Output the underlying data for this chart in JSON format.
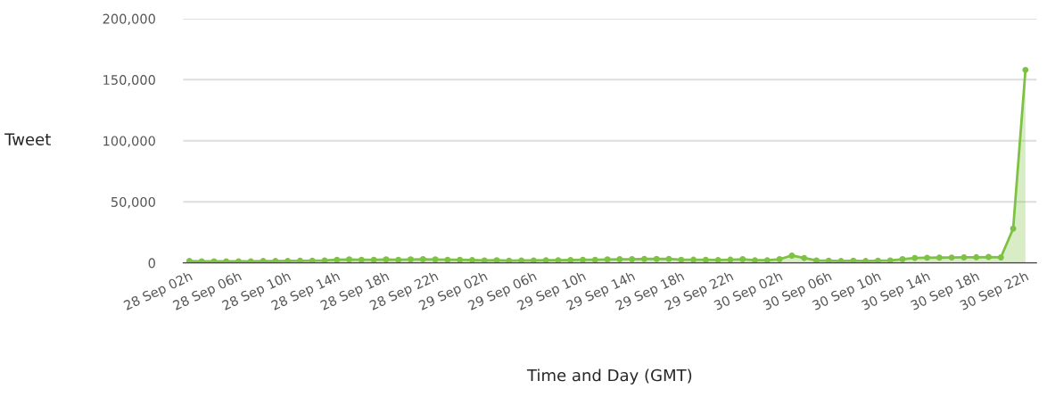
{
  "chart_data": {
    "type": "area",
    "xlabel": "Time and Day (GMT)",
    "ylabel": "Tweet",
    "categories": [
      "28 Sep 02h",
      null,
      null,
      null,
      "28 Sep 06h",
      null,
      null,
      null,
      "28 Sep 10h",
      null,
      null,
      null,
      "28 Sep 14h",
      null,
      null,
      null,
      "28 Sep 18h",
      null,
      null,
      null,
      "28 Sep 22h",
      null,
      null,
      null,
      "29 Sep 02h",
      null,
      null,
      null,
      "29 Sep 06h",
      null,
      null,
      null,
      "29 Sep 10h",
      null,
      null,
      null,
      "29 Sep 14h",
      null,
      null,
      null,
      "29 Sep 18h",
      null,
      null,
      null,
      "29 Sep 22h",
      null,
      null,
      null,
      "30 Sep 02h",
      null,
      null,
      null,
      "30 Sep 06h",
      null,
      null,
      null,
      "30 Sep 10h",
      null,
      null,
      null,
      "30 Sep 14h",
      null,
      null,
      null,
      "30 Sep 18h",
      null,
      null,
      null,
      "30 Sep 22h"
    ],
    "series": [
      {
        "color": "#7dc242",
        "values": [
          1500,
          1200,
          1300,
          1200,
          1300,
          1200,
          1500,
          1500,
          1600,
          1700,
          1800,
          2000,
          2500,
          2800,
          2500,
          2500,
          2800,
          2500,
          2800,
          3000,
          2800,
          2500,
          2500,
          2300,
          2000,
          2200,
          1800,
          2000,
          2000,
          2200,
          2200,
          2300,
          2500,
          2500,
          2800,
          3000,
          3000,
          3200,
          3200,
          3300,
          2500,
          2600,
          2500,
          2400,
          2600,
          3000,
          2200,
          2200,
          3000,
          6000,
          4000,
          2000,
          1800,
          1500,
          1800,
          1500,
          1800,
          2000,
          3000,
          4000,
          4200,
          4300,
          4400,
          4500,
          4600,
          4800,
          4500,
          28000,
          158000
        ]
      }
    ],
    "ylim": [
      0,
      200000
    ],
    "yticks": [
      {
        "value": 0,
        "label": "0"
      },
      {
        "value": 50000,
        "label": "50,000"
      },
      {
        "value": 100000,
        "label": "100,000"
      },
      {
        "value": 150000,
        "label": "150,000"
      },
      {
        "value": 200000,
        "label": "200,000"
      }
    ],
    "grid": "y",
    "marker": "circle",
    "line_style": "solid"
  }
}
